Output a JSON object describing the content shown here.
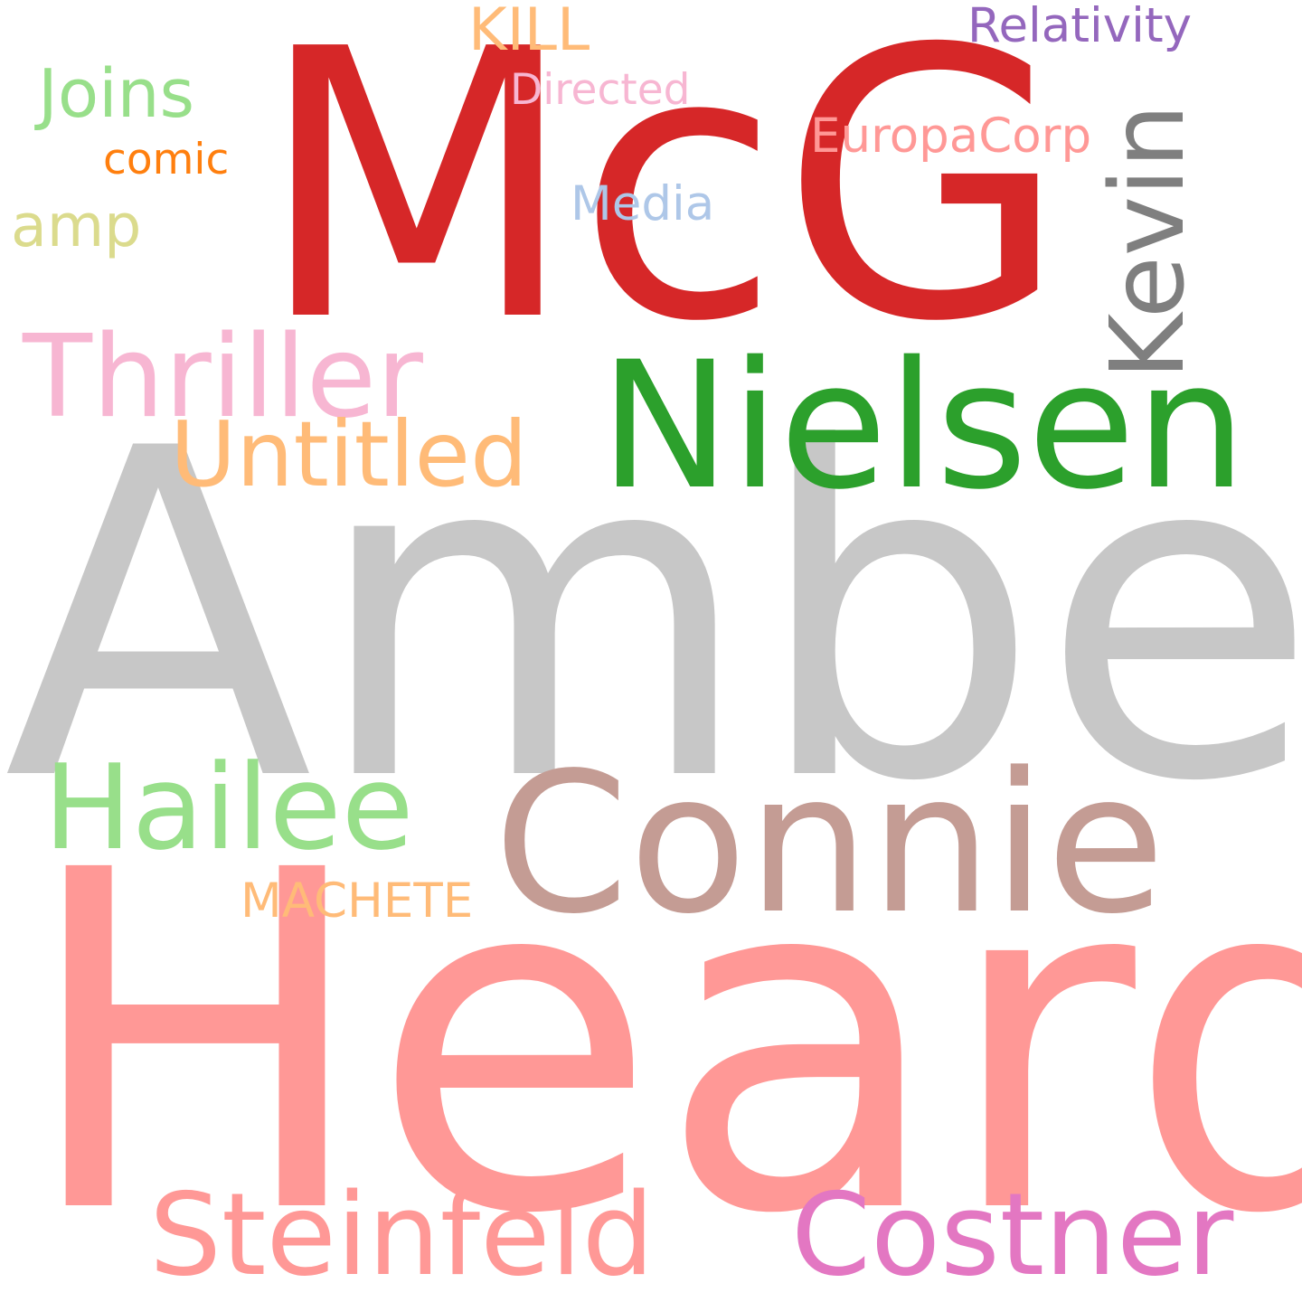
{
  "words": [
    {
      "id": "amber",
      "text": "Amber",
      "color": "#c7c7c7"
    },
    {
      "id": "heard",
      "text": "Heard",
      "color": "#ff9896"
    },
    {
      "id": "mcg",
      "text": "McG",
      "color": "#d62728"
    },
    {
      "id": "nielsen",
      "text": "Nielsen",
      "color": "#2ca02c"
    },
    {
      "id": "connie",
      "text": "Connie",
      "color": "#c49c94"
    },
    {
      "id": "hailee",
      "text": "Hailee",
      "color": "#98df8a"
    },
    {
      "id": "steinfeld",
      "text": "Steinfeld",
      "color": "#ff9896"
    },
    {
      "id": "costner",
      "text": "Costner",
      "color": "#e377c2"
    },
    {
      "id": "thriller",
      "text": "Thriller",
      "color": "#f7b6d2"
    },
    {
      "id": "untitled",
      "text": "Untitled",
      "color": "#ffbb78"
    },
    {
      "id": "kevin",
      "text": "Kevin",
      "color": "#7f7f7f"
    },
    {
      "id": "joins",
      "text": "Joins",
      "color": "#98df8a"
    },
    {
      "id": "relativity",
      "text": "Relativity",
      "color": "#9467bd"
    },
    {
      "id": "kill",
      "text": "KILL",
      "color": "#ffbb78"
    },
    {
      "id": "directed",
      "text": "Directed",
      "color": "#f7b6d2"
    },
    {
      "id": "europacorp",
      "text": "EuropaCorp",
      "color": "#ff9896"
    },
    {
      "id": "comic",
      "text": "comic",
      "color": "#ff7f0e"
    },
    {
      "id": "media",
      "text": "Media",
      "color": "#aec7e8"
    },
    {
      "id": "amp",
      "text": "amp",
      "color": "#dbdb8d"
    },
    {
      "id": "machete",
      "text": "MACHETE",
      "color": "#ffbb78"
    }
  ]
}
